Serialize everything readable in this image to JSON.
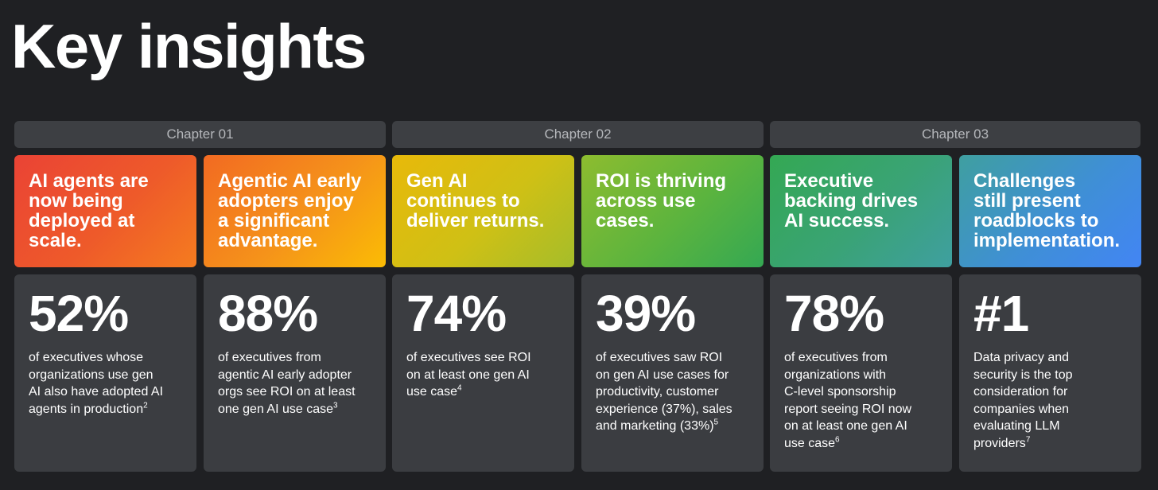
{
  "title": "Key insights",
  "chapters": [
    {
      "label": "Chapter 01"
    },
    {
      "label": "Chapter 02"
    },
    {
      "label": "Chapter 03"
    }
  ],
  "cards": [
    {
      "headline": [
        "AI agents are",
        "now being",
        "deployed at",
        "scale."
      ],
      "stat": "52%",
      "description": [
        "of executives whose",
        "organizations use gen",
        "AI also have adopted AI",
        "agents in production"
      ],
      "footnote": "2"
    },
    {
      "headline": [
        "Agentic AI early",
        "adopters enjoy",
        "a significant",
        "advantage."
      ],
      "stat": "88%",
      "description": [
        "of executives from",
        "agentic AI early adopter",
        "orgs see ROI on at least",
        "one gen AI use case"
      ],
      "footnote": "3"
    },
    {
      "headline": [
        "Gen AI",
        "continues to",
        "deliver returns."
      ],
      "stat": "74%",
      "description": [
        "of executives see ROI",
        "on at least one gen AI",
        "use case"
      ],
      "footnote": "4"
    },
    {
      "headline": [
        "ROI is thriving",
        "across use",
        "cases."
      ],
      "stat": "39%",
      "description": [
        "of executives saw ROI",
        "on gen AI use cases for",
        "productivity, customer",
        "experience (37%), sales",
        "and marketing (33%)"
      ],
      "footnote": "5"
    },
    {
      "headline": [
        "Executive",
        "backing drives",
        "AI success."
      ],
      "stat": "78%",
      "description": [
        "of executives from",
        "organizations with",
        "C-level sponsorship",
        "report seeing ROI now",
        "on at least one gen AI",
        "use case"
      ],
      "footnote": "6"
    },
    {
      "headline": [
        "Challenges",
        "still present",
        "roadblocks to",
        "implementation."
      ],
      "stat": "#1",
      "description": [
        "Data privacy and",
        "security is the top",
        "consideration for",
        "companies when",
        "evaluating LLM",
        "providers"
      ],
      "footnote": "7"
    }
  ],
  "colors": {
    "background": "#1f2023",
    "chapter_bar": "#3d3f43",
    "stat_card": "#3b3d41",
    "red": "#ea4335",
    "orange": "#f57c1f",
    "yellow": "#fbbc04",
    "green": "#34a853",
    "blue": "#4285f4"
  }
}
